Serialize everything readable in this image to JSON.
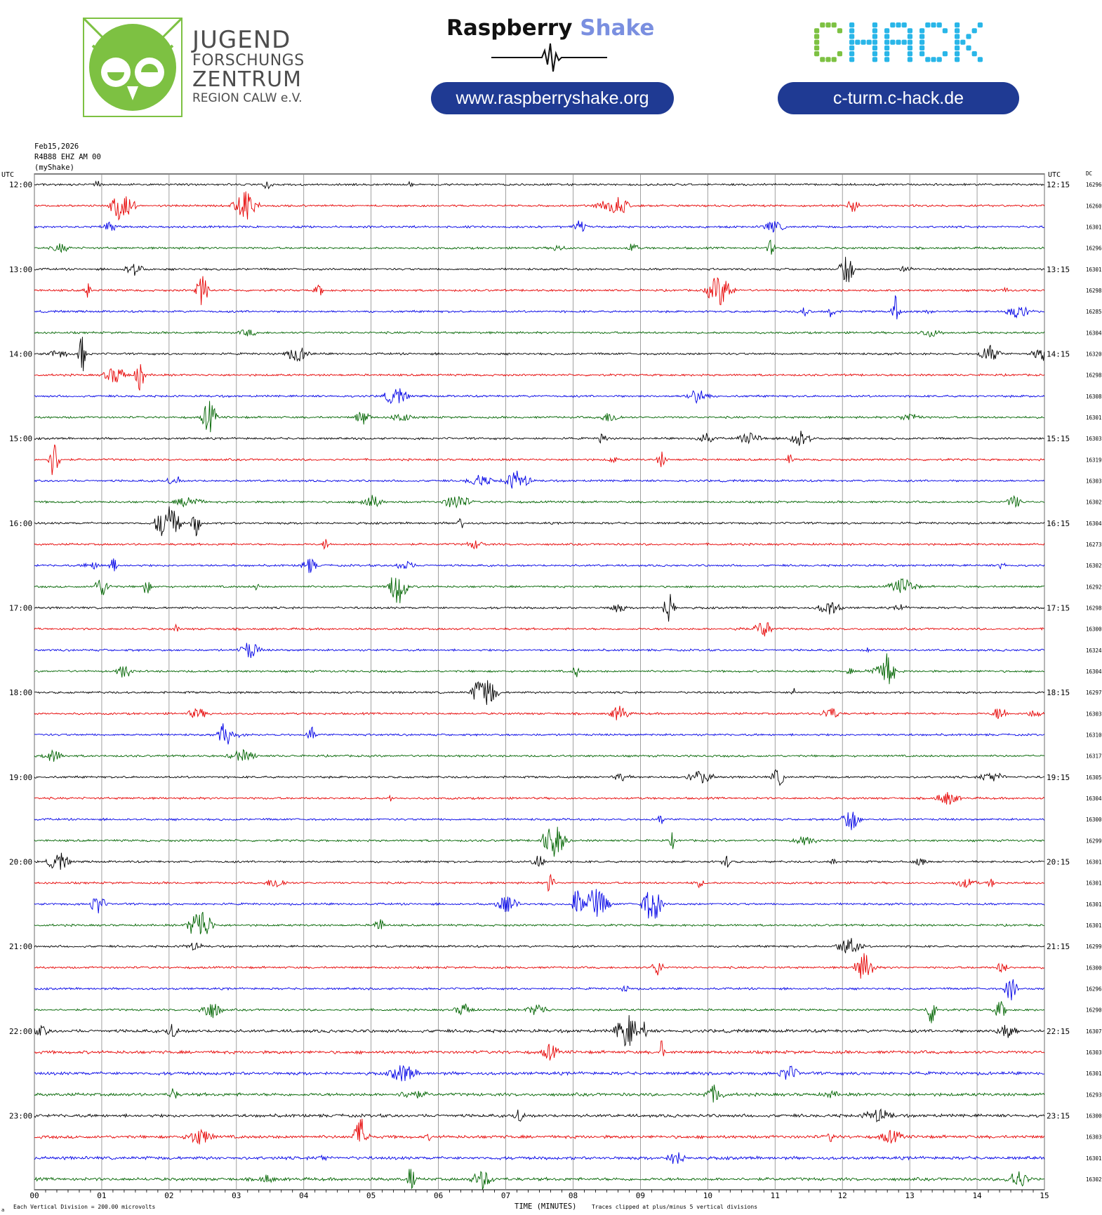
{
  "header": {
    "jfz": {
      "line1": "JUGEND",
      "line2": "FORSCHUNGS",
      "line3": "ZENTRUM",
      "line4": "REGION CALW e.V.",
      "color": "#7dc142"
    },
    "rs": {
      "word1": "Raspberry",
      "word2": "Shake",
      "url": "www.raspberryshake.org"
    },
    "chack": {
      "logo": "CHACK",
      "url": "c-turm.c-hack.de",
      "green": "#7dc142",
      "blue": "#29b6e8"
    },
    "pill_color": "#1f3a93"
  },
  "meta": {
    "date": "Feb15,2026",
    "station": "R4B88 EHZ AM 00",
    "source": "(myShake)"
  },
  "chart_data": {
    "type": "line",
    "title": "",
    "xlabel": "TIME (MINUTES)",
    "xlim": [
      0,
      15
    ],
    "xticks": [
      "00",
      "01",
      "02",
      "03",
      "04",
      "05",
      "06",
      "07",
      "08",
      "09",
      "10",
      "11",
      "12",
      "13",
      "14",
      "15"
    ],
    "left_axis_title": "UTC",
    "right_axis_title": "UTC",
    "dc_title": "DC",
    "left_hour_labels": [
      "12:00",
      "13:00",
      "14:00",
      "15:00",
      "16:00",
      "17:00",
      "18:00",
      "19:00",
      "20:00",
      "21:00",
      "22:00",
      "23:00"
    ],
    "right_hour_labels": [
      "12:15",
      "13:15",
      "14:15",
      "15:15",
      "16:15",
      "17:15",
      "18:15",
      "19:15",
      "20:15",
      "21:15",
      "22:15",
      "23:15"
    ],
    "trace_colors": [
      "#000000",
      "#e60000",
      "#0000e6",
      "#006400"
    ],
    "dc_values": [
      "16296",
      "16260",
      "16301",
      "16296",
      "16301",
      "16298",
      "16285",
      "16304",
      "16320",
      "16298",
      "16308",
      "16301",
      "16303",
      "16319",
      "16303",
      "16302",
      "16304",
      "16273",
      "16302",
      "16292",
      "16298",
      "16300",
      "16324",
      "16304",
      "16297",
      "16303",
      "16310",
      "16317",
      "16305",
      "16304",
      "16300",
      "16299",
      "16301",
      "16301",
      "16301",
      "16301",
      "16299",
      "16300",
      "16296",
      "16290",
      "16307",
      "16303",
      "16301",
      "16293",
      "16300",
      "16303",
      "16301",
      "16302"
    ],
    "footer_left": "Each Vertical Division =  200.00 microvolts",
    "footer_right": "Traces clipped at plus/minus 5 vertical divisions",
    "footer_left_mark": "a"
  }
}
